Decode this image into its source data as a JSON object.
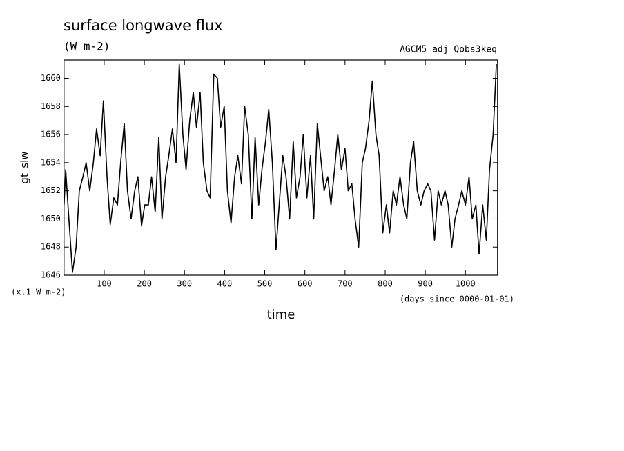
{
  "chart_data": {
    "type": "line",
    "title": "surface longwave flux",
    "subtitle": "(W m-2)",
    "annotation": "AGCM5_adj_Qobs3keq",
    "y_label": "gt_slw",
    "y_unit": "(x.1 W m-2)",
    "x_label": "time",
    "x_unit": "(days since 0000-01-01)",
    "xlim": [
      0,
      1080
    ],
    "ylim": [
      1646,
      1661.3
    ],
    "xticks": [
      100,
      200,
      300,
      400,
      500,
      600,
      700,
      800,
      900,
      1000
    ],
    "yticks": [
      1646,
      1648,
      1650,
      1652,
      1654,
      1656,
      1658,
      1660
    ],
    "color": "#000000",
    "x": [
      0,
      4,
      12,
      21,
      30,
      38,
      47,
      55,
      64,
      73,
      81,
      90,
      98,
      107,
      115,
      124,
      133,
      141,
      150,
      158,
      167,
      176,
      184,
      193,
      201,
      210,
      218,
      227,
      236,
      244,
      253,
      261,
      270,
      279,
      287,
      296,
      304,
      313,
      322,
      330,
      339,
      347,
      356,
      364,
      373,
      382,
      390,
      399,
      407,
      416,
      425,
      433,
      442,
      450,
      459,
      468,
      476,
      485,
      493,
      502,
      510,
      519,
      528,
      536,
      545,
      553,
      562,
      571,
      579,
      588,
      596,
      605,
      614,
      622,
      631,
      639,
      648,
      657,
      665,
      674,
      682,
      691,
      700,
      708,
      717,
      725,
      734,
      743,
      751,
      760,
      768,
      777,
      785,
      794,
      803,
      811,
      820,
      828,
      837,
      846,
      854,
      863,
      871,
      880,
      889,
      897,
      906,
      914,
      923,
      932,
      940,
      949,
      957,
      966,
      974,
      983,
      991,
      1000,
      1009,
      1017,
      1026,
      1034,
      1043,
      1052,
      1060,
      1069,
      1077
    ],
    "values": [
      1651,
      1653.5,
      1650,
      1646.2,
      1648,
      1652,
      1653,
      1654,
      1652,
      1654,
      1656.4,
      1654.5,
      1658.4,
      1653,
      1649.6,
      1651.5,
      1651,
      1654,
      1656.8,
      1652,
      1650,
      1652,
      1653,
      1649.5,
      1651,
      1651,
      1653,
      1650.5,
      1655.8,
      1650,
      1653,
      1654.5,
      1656.4,
      1654,
      1661,
      1656,
      1653.5,
      1657,
      1659,
      1656.5,
      1659,
      1654,
      1652,
      1651.5,
      1660.3,
      1660,
      1656.5,
      1658,
      1652,
      1649.7,
      1653,
      1654.5,
      1652.5,
      1658,
      1656,
      1650,
      1655.8,
      1651,
      1653.5,
      1655.5,
      1657.8,
      1654,
      1647.8,
      1651,
      1654.5,
      1653,
      1650,
      1655.5,
      1651.5,
      1653,
      1656,
      1651.5,
      1654.5,
      1650,
      1656.8,
      1654.5,
      1652,
      1653,
      1651,
      1653.5,
      1656,
      1653.5,
      1655,
      1652,
      1652.5,
      1650,
      1648,
      1654,
      1655,
      1657,
      1659.8,
      1656,
      1654.5,
      1649,
      1651,
      1649,
      1652,
      1651,
      1653,
      1651,
      1650,
      1654,
      1655.5,
      1652,
      1651,
      1652,
      1652.5,
      1652,
      1648.5,
      1652,
      1651,
      1652,
      1651,
      1648,
      1650,
      1651,
      1652,
      1651,
      1653,
      1650,
      1651,
      1647.5,
      1651,
      1648.5,
      1653.5,
      1656,
      1661
    ]
  }
}
